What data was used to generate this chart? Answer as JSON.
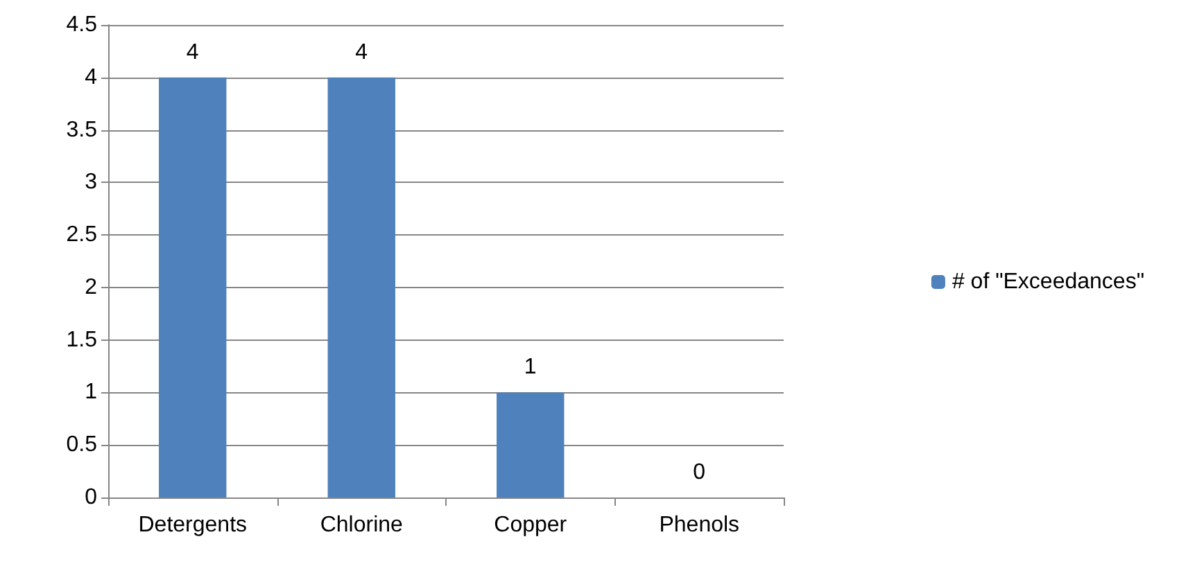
{
  "chart_data": {
    "type": "bar",
    "categories": [
      "Detergents",
      "Chlorine",
      "Copper",
      "Phenols"
    ],
    "series": [
      {
        "name": "# of \"Exceedances\"",
        "color": "#4f81bd",
        "values": [
          4,
          4,
          1,
          0
        ]
      }
    ],
    "ylim": [
      0,
      4.5
    ],
    "yticks": [
      0,
      0.5,
      1,
      1.5,
      2,
      2.5,
      3,
      3.5,
      4,
      4.5
    ],
    "grid": "y",
    "legend": "right",
    "data_labels": true
  }
}
